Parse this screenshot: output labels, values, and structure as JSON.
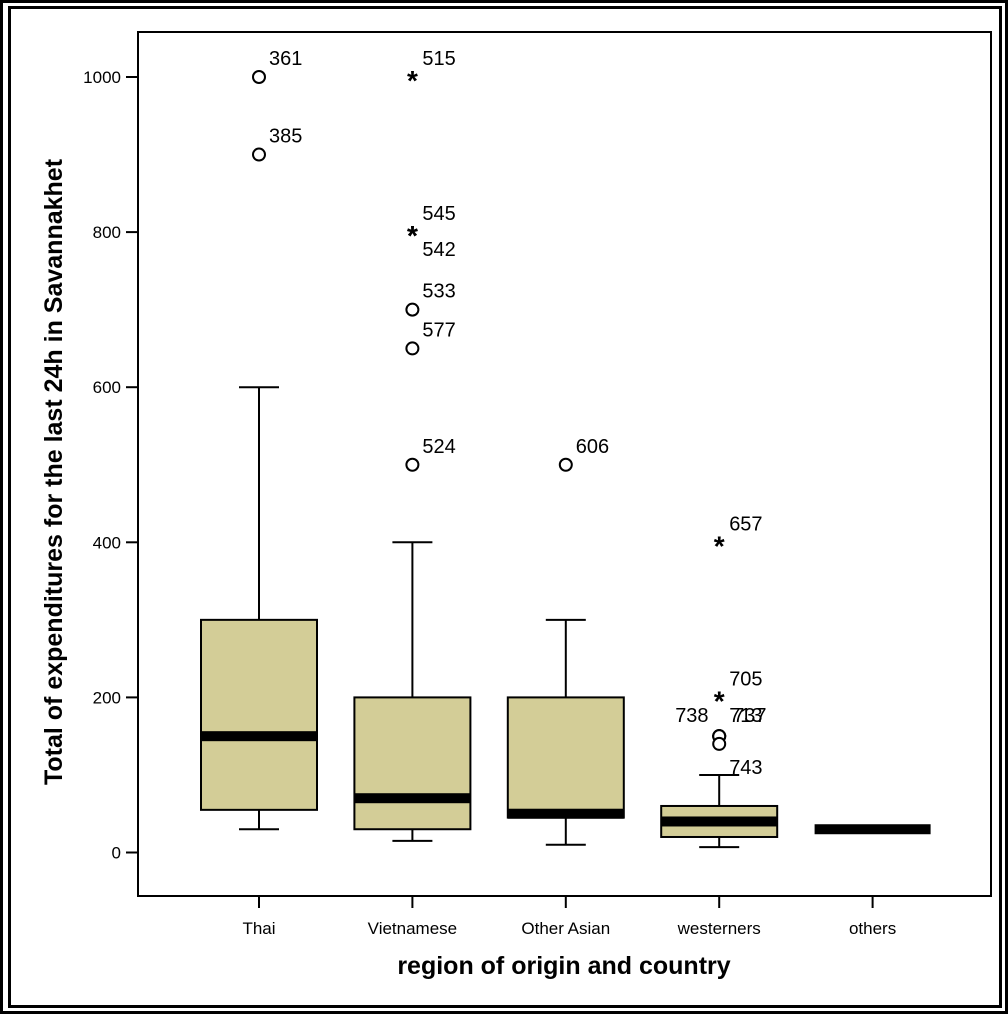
{
  "chart_data": {
    "type": "boxplot",
    "xlabel": "region of origin and country",
    "ylabel": "Total of expenditures for the last 24h in Savannakhet",
    "ylim": [
      -75,
      1060
    ],
    "yticks": [
      0,
      200,
      400,
      600,
      800,
      1000
    ],
    "box_color": "#d3cd97",
    "categories": [
      "Thai",
      "Vietnamese",
      "Other Asian",
      "westerners",
      "others"
    ],
    "boxes": [
      {
        "category": "Thai",
        "whisker_low": 30,
        "q1": 55,
        "median": 150,
        "q3": 300,
        "whisker_high": 600
      },
      {
        "category": "Vietnamese",
        "whisker_low": 15,
        "q1": 30,
        "median": 70,
        "q3": 200,
        "whisker_high": 400
      },
      {
        "category": "Other Asian",
        "whisker_low": 10,
        "q1": 45,
        "median": 50,
        "q3": 200,
        "whisker_high": 300
      },
      {
        "category": "westerners",
        "whisker_low": 7,
        "q1": 20,
        "median": 40,
        "q3": 60,
        "whisker_high": 100
      },
      {
        "category": "others",
        "whisker_low": 30,
        "q1": 30,
        "median": 30,
        "q3": 30,
        "whisker_high": 30
      }
    ],
    "outliers": [
      {
        "category": "Thai",
        "value": 1000,
        "marker": "circle",
        "label": "361"
      },
      {
        "category": "Thai",
        "value": 900,
        "marker": "circle",
        "label": "385"
      },
      {
        "category": "Vietnamese",
        "value": 1000,
        "marker": "star",
        "label": "515"
      },
      {
        "category": "Vietnamese",
        "value": 800,
        "marker": "star",
        "label": "545"
      },
      {
        "category": "Vietnamese",
        "value": 800,
        "marker": "star",
        "label": "542"
      },
      {
        "category": "Vietnamese",
        "value": 700,
        "marker": "circle",
        "label": "533"
      },
      {
        "category": "Vietnamese",
        "value": 650,
        "marker": "circle",
        "label": "577"
      },
      {
        "category": "Vietnamese",
        "value": 500,
        "marker": "circle",
        "label": "524"
      },
      {
        "category": "Other Asian",
        "value": 500,
        "marker": "circle",
        "label": "606"
      },
      {
        "category": "westerners",
        "value": 400,
        "marker": "star",
        "label": "657"
      },
      {
        "category": "westerners",
        "value": 200,
        "marker": "star",
        "label": "705"
      },
      {
        "category": "westerners",
        "value": 150,
        "marker": "circle",
        "label": "738"
      },
      {
        "category": "westerners",
        "value": 150,
        "marker": "circle",
        "label": "713"
      },
      {
        "category": "westerners",
        "value": 150,
        "marker": "circle",
        "label": "737"
      },
      {
        "category": "westerners",
        "value": 140,
        "marker": "circle",
        "label": "743"
      }
    ]
  }
}
